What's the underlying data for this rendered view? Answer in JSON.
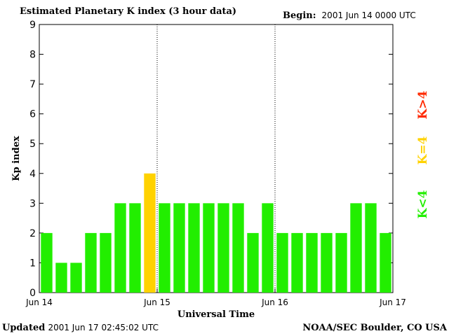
{
  "header": {
    "title": "Estimated Planetary K index (3 hour data)",
    "begin_label": "Begin:",
    "begin_value": "2001 Jun 14 0000 UTC"
  },
  "footer": {
    "updated_label": "Updated",
    "updated_value": "2001 Jun 17 02:45:02 UTC",
    "credit": "NOAA/SEC Boulder, CO USA"
  },
  "legend": [
    {
      "label": "K>4",
      "color": "#ff2a00"
    },
    {
      "label": "K=4",
      "color": "#ffd200"
    },
    {
      "label": "K<4",
      "color": "#22ee00"
    }
  ],
  "colors": {
    "below": "#22ee00",
    "equal": "#ffd200",
    "above": "#ff2a00"
  },
  "chart_data": {
    "type": "bar",
    "title": "Estimated Planetary K index (3 hour data)",
    "xlabel": "Universal Time",
    "ylabel": "Kp index",
    "ylim": [
      0,
      9
    ],
    "yticks": [
      0,
      1,
      2,
      3,
      4,
      5,
      6,
      7,
      8,
      9
    ],
    "xticks": [
      "Jun 14",
      "Jun 15",
      "Jun 16",
      "Jun 17"
    ],
    "day_separators": [
      "Jun 15",
      "Jun 16"
    ],
    "bar_interval_hours": 3,
    "values": [
      2,
      1,
      1,
      2,
      2,
      3,
      3,
      4,
      3,
      3,
      3,
      3,
      3,
      3,
      2,
      3,
      2,
      2,
      2,
      2,
      2,
      3,
      3,
      2
    ]
  }
}
